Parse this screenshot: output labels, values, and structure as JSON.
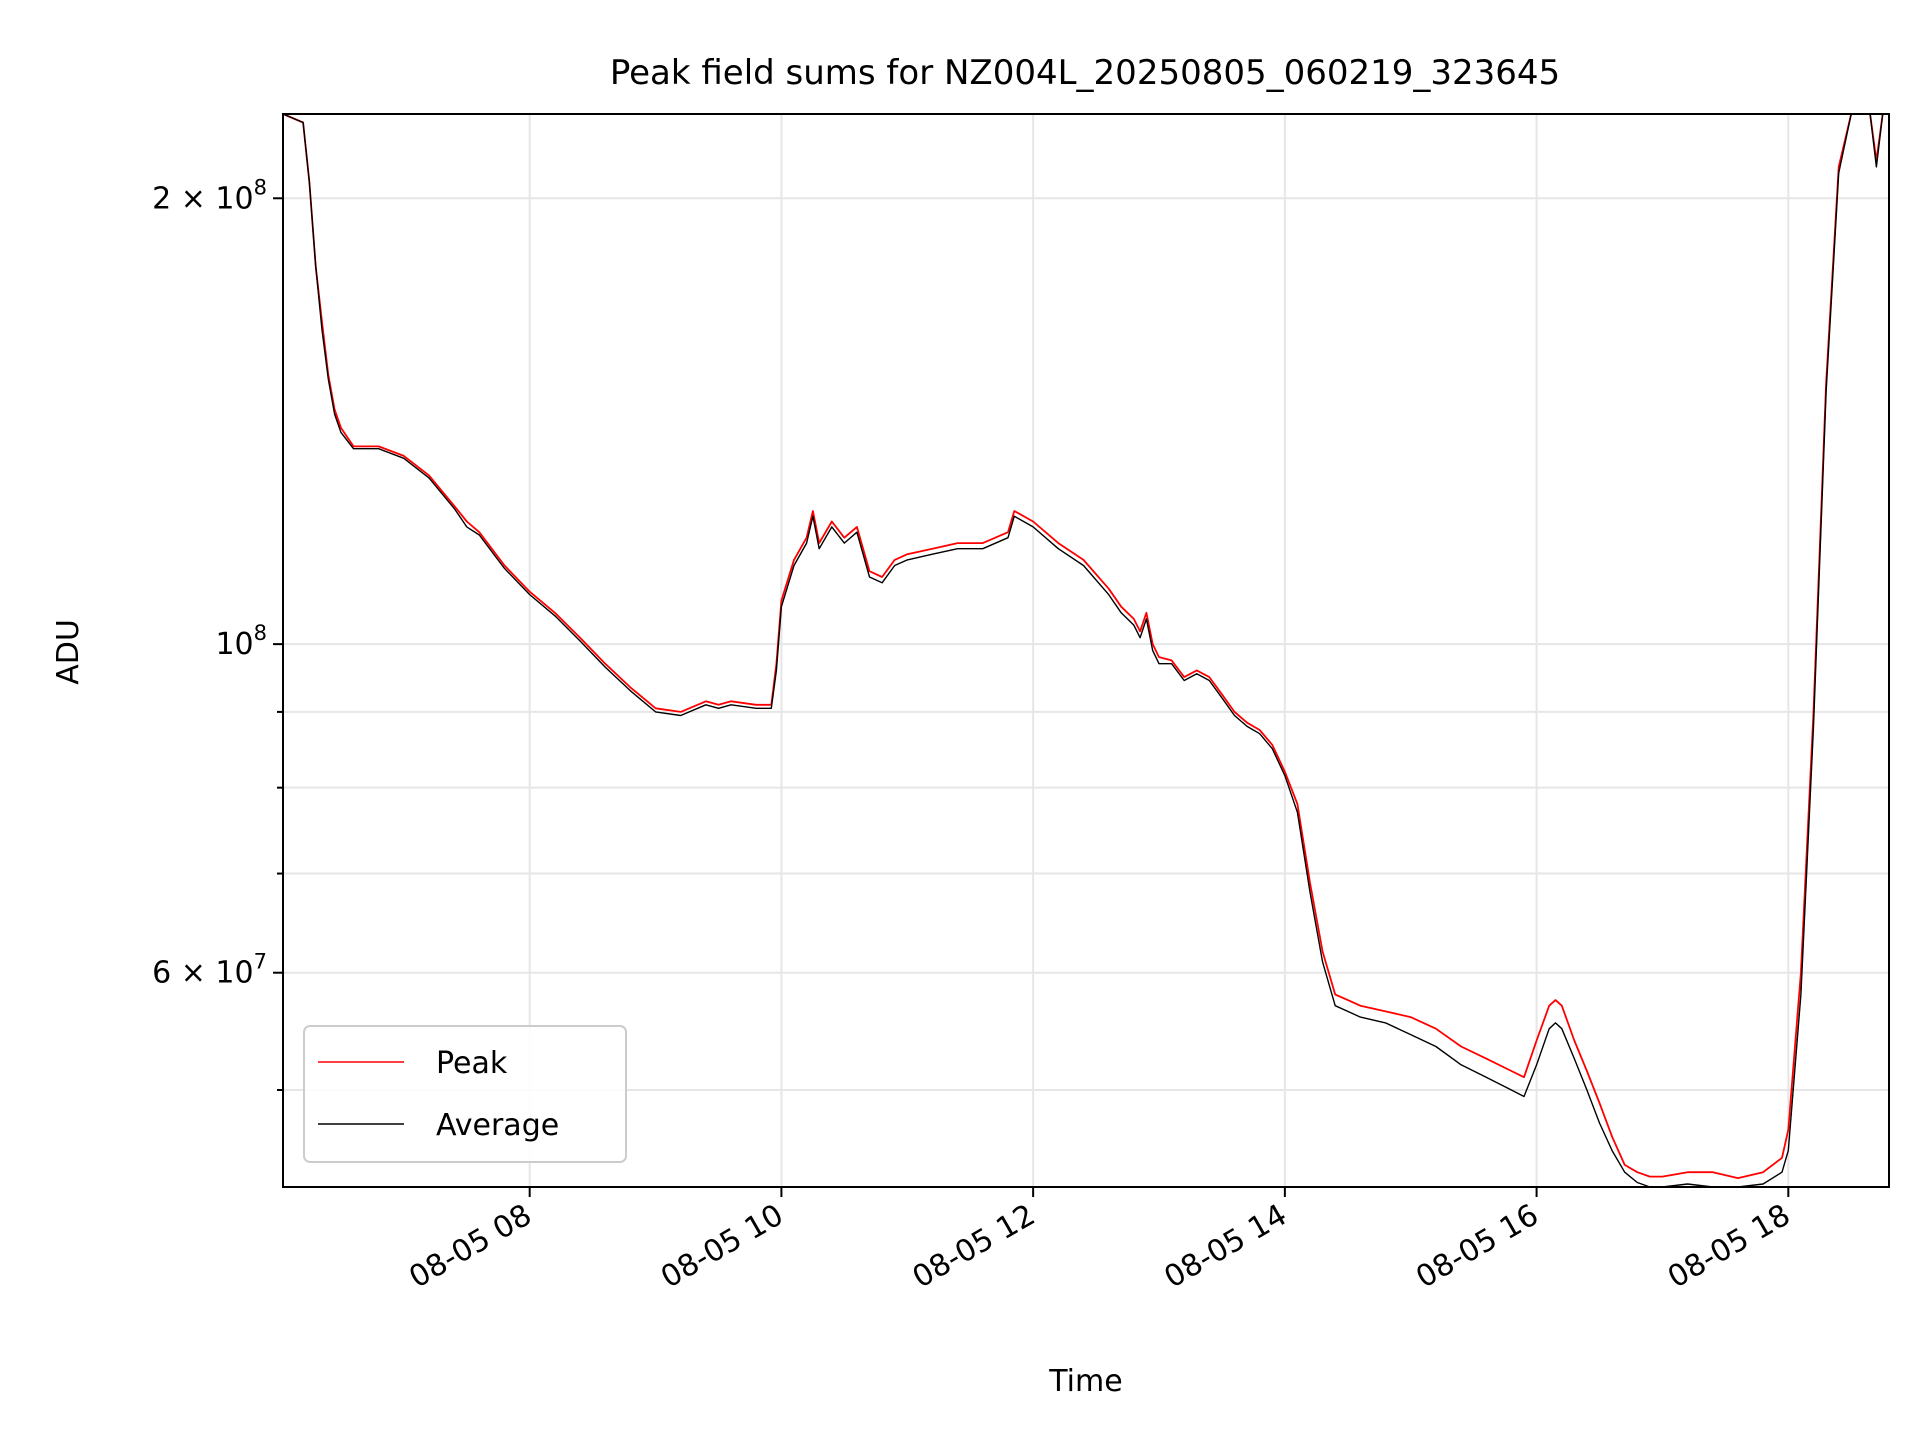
{
  "chart_data": {
    "type": "line",
    "title": "Peak field sums for NZ004L_20250805_060219_323645",
    "xlabel": "Time",
    "ylabel": "ADU",
    "x_unit": "hours (clock time on 08-05)",
    "xlim": [
      6.04,
      18.8
    ],
    "ylim": [
      43000000,
      228000000
    ],
    "y_scale": "log",
    "grid": true,
    "legend_position": "lower-left",
    "x_ticks": [
      {
        "value": 8,
        "label": "08-05 08"
      },
      {
        "value": 10,
        "label": "08-05 10"
      },
      {
        "value": 12,
        "label": "08-05 12"
      },
      {
        "value": 14,
        "label": "08-05 14"
      },
      {
        "value": 16,
        "label": "08-05 16"
      },
      {
        "value": 18,
        "label": "08-05 18"
      }
    ],
    "y_major_ticks": [
      {
        "value": 60000000,
        "label": "6 × 10⁷",
        "base": "6 × 10",
        "exp": "7"
      },
      {
        "value": 100000000,
        "label": "10⁸",
        "base": "10",
        "exp": "8"
      },
      {
        "value": 200000000,
        "label": "2 × 10⁸",
        "base": "2 × 10",
        "exp": "8"
      }
    ],
    "y_minor_ticks": [
      50000000,
      70000000,
      80000000,
      90000000
    ],
    "series": [
      {
        "name": "Peak",
        "color": "#ff0000",
        "x": [
          6.04,
          6.2,
          6.25,
          6.3,
          6.35,
          6.4,
          6.45,
          6.5,
          6.6,
          6.8,
          7.0,
          7.2,
          7.4,
          7.5,
          7.6,
          7.8,
          8.0,
          8.2,
          8.4,
          8.6,
          8.8,
          9.0,
          9.2,
          9.4,
          9.5,
          9.6,
          9.8,
          9.92,
          9.96,
          10.0,
          10.1,
          10.2,
          10.25,
          10.3,
          10.4,
          10.5,
          10.6,
          10.7,
          10.8,
          10.9,
          11.0,
          11.2,
          11.4,
          11.6,
          11.8,
          11.85,
          12.0,
          12.2,
          12.4,
          12.6,
          12.7,
          12.8,
          12.85,
          12.9,
          12.95,
          13.0,
          13.1,
          13.2,
          13.3,
          13.4,
          13.5,
          13.6,
          13.7,
          13.8,
          13.9,
          14.0,
          14.1,
          14.2,
          14.3,
          14.4,
          14.5,
          14.6,
          14.8,
          15.0,
          15.2,
          15.4,
          15.6,
          15.8,
          15.9,
          16.0,
          16.1,
          16.15,
          16.2,
          16.3,
          16.4,
          16.5,
          16.6,
          16.7,
          16.8,
          16.9,
          17.0,
          17.2,
          17.4,
          17.6,
          17.8,
          17.95,
          18.0,
          18.1,
          18.2,
          18.3,
          18.4,
          18.5,
          18.55,
          18.6,
          18.65,
          18.7,
          18.75,
          18.8
        ],
        "y": [
          228000000,
          225000000,
          205000000,
          180000000,
          165000000,
          152000000,
          144000000,
          140000000,
          136000000,
          136000000,
          134000000,
          130000000,
          124000000,
          121000000,
          119000000,
          113000000,
          108500000,
          105000000,
          101000000,
          97000000,
          93500000,
          90500000,
          90000000,
          91500000,
          91000000,
          91500000,
          91000000,
          91000000,
          97000000,
          107000000,
          114000000,
          118000000,
          123000000,
          117000000,
          121000000,
          118000000,
          120000000,
          112000000,
          111000000,
          114000000,
          115000000,
          116000000,
          117000000,
          117000000,
          119000000,
          123000000,
          121000000,
          117000000,
          114000000,
          109000000,
          106000000,
          104000000,
          102000000,
          105000000,
          100000000,
          98000000,
          97500000,
          95000000,
          96000000,
          95000000,
          92500000,
          90000000,
          88500000,
          87500000,
          85500000,
          82000000,
          78000000,
          69000000,
          62000000,
          58000000,
          57500000,
          57000000,
          56500000,
          56000000,
          55000000,
          53500000,
          52500000,
          51500000,
          51000000,
          54000000,
          57000000,
          57500000,
          57000000,
          54000000,
          51500000,
          49000000,
          46500000,
          44500000,
          44000000,
          43700000,
          43700000,
          44000000,
          44000000,
          43600000,
          44000000,
          45000000,
          47000000,
          60000000,
          90000000,
          150000000,
          210000000,
          228000000,
          228000000,
          228000000,
          228000000,
          212000000,
          228000000,
          228000000
        ]
      },
      {
        "name": "Average",
        "color": "#000000",
        "x": [
          6.04,
          6.2,
          6.25,
          6.3,
          6.35,
          6.4,
          6.45,
          6.5,
          6.6,
          6.8,
          7.0,
          7.2,
          7.4,
          7.5,
          7.6,
          7.8,
          8.0,
          8.2,
          8.4,
          8.6,
          8.8,
          9.0,
          9.2,
          9.4,
          9.5,
          9.6,
          9.8,
          9.92,
          9.96,
          10.0,
          10.1,
          10.2,
          10.25,
          10.3,
          10.4,
          10.5,
          10.6,
          10.7,
          10.8,
          10.9,
          11.0,
          11.2,
          11.4,
          11.6,
          11.8,
          11.85,
          12.0,
          12.2,
          12.4,
          12.6,
          12.7,
          12.8,
          12.85,
          12.9,
          12.95,
          13.0,
          13.1,
          13.2,
          13.3,
          13.4,
          13.5,
          13.6,
          13.7,
          13.8,
          13.9,
          14.0,
          14.1,
          14.2,
          14.3,
          14.4,
          14.5,
          14.6,
          14.8,
          15.0,
          15.2,
          15.4,
          15.6,
          15.8,
          15.9,
          16.0,
          16.1,
          16.15,
          16.2,
          16.3,
          16.4,
          16.5,
          16.6,
          16.7,
          16.8,
          16.9,
          17.0,
          17.2,
          17.4,
          17.6,
          17.8,
          17.95,
          18.0,
          18.1,
          18.2,
          18.3,
          18.4,
          18.5,
          18.55,
          18.6,
          18.65,
          18.7,
          18.75,
          18.8
        ],
        "y": [
          228000000,
          225000000,
          205000000,
          180000000,
          163000000,
          151000000,
          143000000,
          139000000,
          135500000,
          135500000,
          133500000,
          129500000,
          123500000,
          120000000,
          118500000,
          112500000,
          108000000,
          104500000,
          100500000,
          96500000,
          93000000,
          90000000,
          89500000,
          91000000,
          90500000,
          91000000,
          90500000,
          90500000,
          96000000,
          106000000,
          113000000,
          117000000,
          122000000,
          116000000,
          120000000,
          117000000,
          119000000,
          111000000,
          110000000,
          113000000,
          114000000,
          115000000,
          116000000,
          116000000,
          118000000,
          122000000,
          120000000,
          116000000,
          113000000,
          108000000,
          105000000,
          103000000,
          101000000,
          104000000,
          99000000,
          97000000,
          97000000,
          94500000,
          95500000,
          94500000,
          92000000,
          89500000,
          88000000,
          87000000,
          85000000,
          81500000,
          77000000,
          68000000,
          61000000,
          57000000,
          56500000,
          56000000,
          55500000,
          54500000,
          53500000,
          52000000,
          51000000,
          50000000,
          49500000,
          52000000,
          55000000,
          55500000,
          55000000,
          52500000,
          50000000,
          47500000,
          45500000,
          44000000,
          43300000,
          43000000,
          43000000,
          43200000,
          43000000,
          43000000,
          43200000,
          44000000,
          45500000,
          58000000,
          88000000,
          148000000,
          208000000,
          228000000,
          228000000,
          228000000,
          228000000,
          210000000,
          228000000,
          228000000
        ]
      }
    ]
  }
}
